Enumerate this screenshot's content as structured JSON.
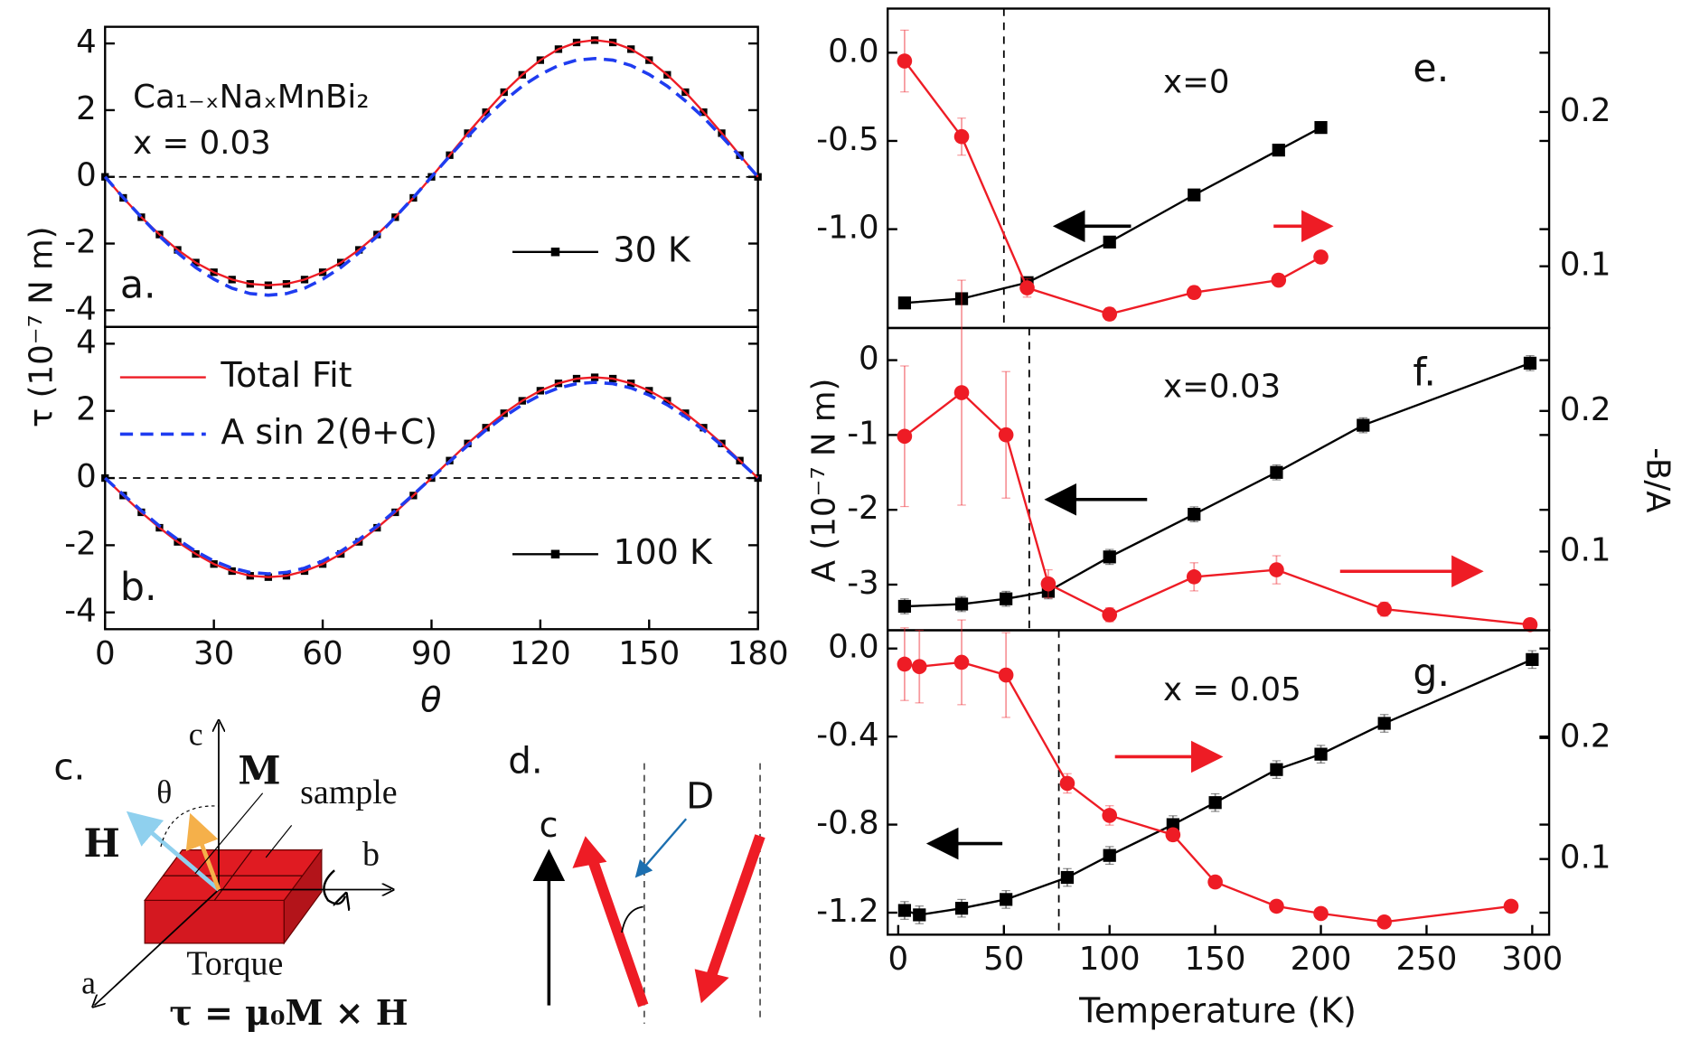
{
  "chart_data": [
    {
      "type": "line",
      "panel_label": "a.",
      "annotations": [
        "Ca₁₋ₓNaₓMnBi₂",
        "x = 0.03"
      ],
      "ylabel": "τ (10⁻⁷ N m)",
      "x": [
        0,
        5,
        10,
        15,
        20,
        25,
        30,
        35,
        40,
        45,
        50,
        55,
        60,
        65,
        70,
        75,
        80,
        85,
        90,
        95,
        100,
        105,
        110,
        115,
        120,
        125,
        130,
        135,
        140,
        145,
        150,
        155,
        160,
        165,
        170,
        175,
        180
      ],
      "xlim": [
        0,
        180
      ],
      "ylim": [
        -4.5,
        4.5
      ],
      "yticks": [
        -4,
        -2,
        0,
        2,
        4
      ],
      "hline": 0,
      "series": [
        {
          "name": "30 K",
          "color": "#000000",
          "marker": "square",
          "line": false,
          "values": [
            0,
            -0.63,
            -1.21,
            -1.73,
            -2.19,
            -2.57,
            -2.86,
            -3.08,
            -3.21,
            -3.25,
            -3.21,
            -3.08,
            -2.86,
            -2.57,
            -2.19,
            -1.73,
            -1.21,
            -0.63,
            0,
            0.65,
            1.31,
            1.94,
            2.54,
            3.06,
            3.5,
            3.83,
            4.03,
            4.1,
            4.03,
            3.83,
            3.5,
            3.06,
            2.54,
            1.94,
            1.31,
            0.65,
            0
          ]
        },
        {
          "color": "#ee1c25",
          "values": [
            0,
            -0.63,
            -1.21,
            -1.73,
            -2.19,
            -2.57,
            -2.86,
            -3.08,
            -3.21,
            -3.25,
            -3.21,
            -3.08,
            -2.86,
            -2.57,
            -2.19,
            -1.73,
            -1.21,
            -0.63,
            0,
            0.65,
            1.31,
            1.94,
            2.54,
            3.06,
            3.5,
            3.83,
            4.03,
            4.1,
            4.03,
            3.83,
            3.5,
            3.06,
            2.54,
            1.94,
            1.31,
            0.65,
            0
          ]
        },
        {
          "color": "#1f3cf0",
          "dash": true,
          "values": [
            0,
            -0.62,
            -1.21,
            -1.78,
            -2.28,
            -2.72,
            -3.07,
            -3.34,
            -3.5,
            -3.55,
            -3.5,
            -3.34,
            -3.07,
            -2.72,
            -2.28,
            -1.78,
            -1.21,
            -0.62,
            0,
            0.62,
            1.21,
            1.78,
            2.28,
            2.72,
            3.07,
            3.34,
            3.5,
            3.55,
            3.5,
            3.34,
            3.07,
            2.72,
            2.28,
            1.78,
            1.21,
            0.62,
            0
          ]
        }
      ]
    },
    {
      "type": "line",
      "panel_label": "b.",
      "xlabel": "θ",
      "x": [
        0,
        5,
        10,
        15,
        20,
        25,
        30,
        35,
        40,
        45,
        50,
        55,
        60,
        65,
        70,
        75,
        80,
        85,
        90,
        95,
        100,
        105,
        110,
        115,
        120,
        125,
        130,
        135,
        140,
        145,
        150,
        155,
        160,
        165,
        170,
        175,
        180
      ],
      "xlim": [
        0,
        180
      ],
      "ylim": [
        -4.5,
        4.5
      ],
      "yticks": [
        -4,
        -2,
        0,
        2,
        4
      ],
      "xticks": [
        0,
        30,
        60,
        90,
        120,
        150,
        180
      ],
      "hline": 0,
      "series": [
        {
          "name": "100 K",
          "color": "#000000",
          "marker": "square",
          "line": false,
          "values": [
            0,
            -0.52,
            -1.02,
            -1.48,
            -1.9,
            -2.26,
            -2.56,
            -2.77,
            -2.91,
            -2.95,
            -2.91,
            -2.77,
            -2.56,
            -2.26,
            -1.9,
            -1.48,
            -1.02,
            -0.52,
            0,
            0.52,
            1.03,
            1.5,
            1.93,
            2.3,
            2.6,
            2.82,
            2.96,
            3,
            2.96,
            2.82,
            2.6,
            2.3,
            1.93,
            1.5,
            1.03,
            0.52,
            0
          ]
        },
        {
          "name": "Total Fit",
          "color": "#ee1c25",
          "values": [
            0,
            -0.52,
            -1.02,
            -1.48,
            -1.9,
            -2.26,
            -2.56,
            -2.77,
            -2.91,
            -2.95,
            -2.91,
            -2.77,
            -2.56,
            -2.26,
            -1.9,
            -1.48,
            -1.02,
            -0.52,
            0,
            0.52,
            1.03,
            1.5,
            1.93,
            2.3,
            2.6,
            2.82,
            2.96,
            3,
            2.96,
            2.82,
            2.6,
            2.3,
            1.93,
            1.5,
            1.03,
            0.52,
            0
          ]
        },
        {
          "name": "A sin 2(θ+C)",
          "color": "#1f3cf0",
          "dash": true,
          "values": [
            0,
            -0.49,
            -0.97,
            -1.43,
            -1.83,
            -2.18,
            -2.47,
            -2.68,
            -2.81,
            -2.85,
            -2.81,
            -2.68,
            -2.47,
            -2.18,
            -1.83,
            -1.43,
            -0.97,
            -0.49,
            0,
            0.49,
            0.97,
            1.43,
            1.83,
            2.18,
            2.47,
            2.68,
            2.81,
            2.85,
            2.81,
            2.68,
            2.47,
            2.18,
            1.83,
            1.43,
            0.97,
            0.49,
            0
          ]
        }
      ]
    },
    {
      "type": "line",
      "panel_label": "e.",
      "annotations": [
        "x=0"
      ],
      "xlim": [
        -5,
        308
      ],
      "ylim": [
        -1.56,
        0.25
      ],
      "y2lim": [
        0.06,
        0.267
      ],
      "yticks": [
        {
          "value": 0,
          "label": "0.0"
        },
        -0.5,
        {
          "value": -1,
          "label": "-1.0"
        }
      ],
      "y2ticks": [
        0.1,
        0.2
      ],
      "vline": 50,
      "series": [
        {
          "color": "#000000",
          "marker": "square",
          "x": [
            3,
            30,
            61,
            100,
            140,
            180,
            200
          ],
          "values": [
            -1.418,
            -1.394,
            -1.303,
            -1.073,
            -0.806,
            -0.552,
            -0.424
          ],
          "errors": [
            0.03,
            0.03,
            0.03,
            0.03,
            0.03,
            0.03,
            0.03
          ]
        },
        {
          "color": "#ee1c25",
          "marker": "circle",
          "axis": "y2",
          "x": [
            3,
            30,
            61,
            100,
            140,
            180,
            200
          ],
          "values": [
            0.233,
            0.184,
            0.086,
            0.069,
            0.083,
            0.091,
            0.106
          ],
          "errors": [
            0.02,
            0.012,
            0.006,
            0.004,
            0.004,
            0.004,
            0.004
          ]
        }
      ]
    },
    {
      "type": "line",
      "panel_label": "f.",
      "annotations": [
        "x=0.03"
      ],
      "ylabel": "A (10⁻⁷ N m)",
      "y2label": "-B/A",
      "xlim": [
        -5,
        308
      ],
      "ylim": [
        -3.61,
        0.43
      ],
      "y2lim": [
        0.044,
        0.259
      ],
      "yticks": [
        0,
        -1,
        -2,
        -3
      ],
      "y2ticks": [
        0.1,
        0.2
      ],
      "vline": 62,
      "series": [
        {
          "color": "#000000",
          "marker": "square",
          "x": [
            3,
            30,
            51,
            71,
            100,
            140,
            179,
            220,
            299
          ],
          "values": [
            -3.29,
            -3.26,
            -3.19,
            -3.09,
            -2.63,
            -2.06,
            -1.5,
            -0.87,
            -0.04
          ],
          "errors": [
            0.1,
            0.1,
            0.1,
            0.1,
            0.1,
            0.1,
            0.1,
            0.1,
            0.1
          ]
        },
        {
          "color": "#ee1c25",
          "marker": "circle",
          "axis": "y2",
          "x": [
            3,
            30,
            51,
            71,
            100,
            140,
            179,
            230,
            299
          ],
          "values": [
            0.182,
            0.213,
            0.183,
            0.077,
            0.055,
            0.082,
            0.087,
            0.059,
            0.048
          ],
          "errors": [
            0.05,
            0.08,
            0.045,
            0.01,
            0.005,
            0.01,
            0.01,
            0.005,
            0.003
          ]
        }
      ]
    },
    {
      "type": "line",
      "panel_label": "g.",
      "annotations": [
        "x = 0.05"
      ],
      "xlabel": "Temperature (K)",
      "xlim": [
        -5,
        308
      ],
      "ylim": [
        -1.3,
        0.083
      ],
      "y2lim": [
        0.0375,
        0.289
      ],
      "yticks": [
        {
          "value": 0,
          "label": "0.0"
        },
        -0.4,
        -0.8,
        -1.2
      ],
      "y2ticks": [
        0.1,
        0.2
      ],
      "xticks": [
        0,
        50,
        100,
        150,
        200,
        250,
        300
      ],
      "vline": 76,
      "series": [
        {
          "color": "#000000",
          "marker": "square",
          "x": [
            3,
            10,
            30,
            51,
            80,
            100,
            130,
            150,
            179,
            200,
            230,
            300
          ],
          "values": [
            -1.19,
            -1.21,
            -1.18,
            -1.14,
            -1.04,
            -0.94,
            -0.8,
            -0.7,
            -0.55,
            -0.48,
            -0.34,
            -0.05
          ],
          "errors": [
            0.04,
            0.04,
            0.04,
            0.04,
            0.04,
            0.04,
            0.04,
            0.04,
            0.04,
            0.04,
            0.04,
            0.04
          ]
        },
        {
          "color": "#ee1c25",
          "marker": "circle",
          "axis": "y2",
          "x": [
            3,
            10,
            30,
            51,
            80,
            100,
            130,
            150,
            179,
            200,
            230,
            290
          ],
          "values": [
            0.261,
            0.259,
            0.2625,
            0.252,
            0.1625,
            0.136,
            0.12,
            0.081,
            0.061,
            0.055,
            0.048,
            0.061
          ],
          "errors": [
            0.03,
            0.03,
            0.035,
            0.035,
            0.008,
            0.008,
            0.005,
            0.004,
            0.004,
            0.004,
            0.004,
            0.004
          ]
        }
      ]
    }
  ],
  "diagram_c": {
    "panel_label": "c.",
    "axis_c": "c",
    "axis_b": "b",
    "axis_a": "a",
    "angle": "θ",
    "field": "H",
    "magnetization": "M",
    "sample": "sample",
    "torque": "Torque",
    "formula": "τ = μ₀M × H"
  },
  "diagram_d": {
    "panel_label": "d.",
    "axis_c": "c",
    "label": "D"
  }
}
